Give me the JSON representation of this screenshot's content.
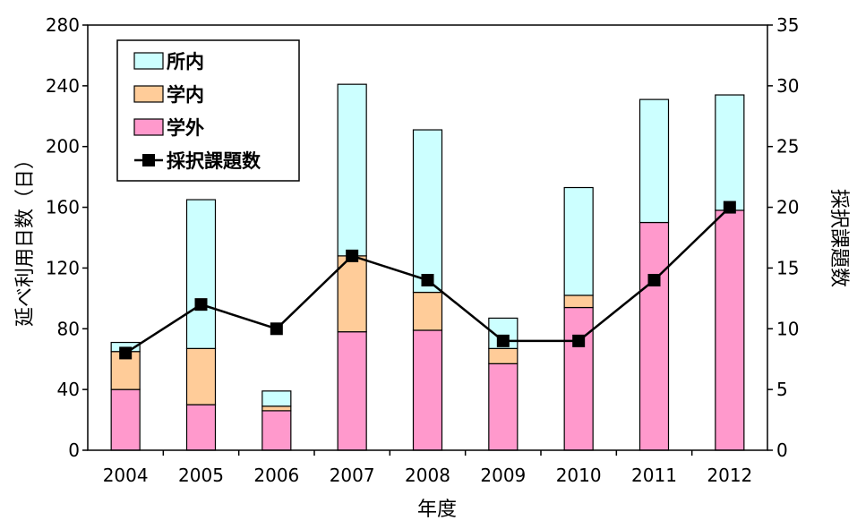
{
  "chart_data": {
    "type": "bar",
    "categories": [
      "2004",
      "2005",
      "2006",
      "2007",
      "2008",
      "2009",
      "2010",
      "2011",
      "2012"
    ],
    "series": [
      {
        "name": "学外",
        "kind": "stacked-bar",
        "axis": "left",
        "color": "#ff99cc",
        "values": [
          40,
          30,
          26,
          78,
          79,
          57,
          94,
          150,
          158
        ]
      },
      {
        "name": "学内",
        "kind": "stacked-bar",
        "axis": "left",
        "color": "#ffcc99",
        "values": [
          25,
          37,
          3,
          50,
          25,
          10,
          8,
          0,
          0
        ]
      },
      {
        "name": "所内",
        "kind": "stacked-bar",
        "axis": "left",
        "color": "#ccffff",
        "values": [
          6,
          98,
          10,
          113,
          107,
          20,
          71,
          81,
          76
        ]
      },
      {
        "name": "採択課題数",
        "kind": "line",
        "axis": "right",
        "color": "#000000",
        "values": [
          8,
          12,
          10,
          16,
          14,
          9,
          9,
          14,
          20
        ]
      }
    ],
    "xlabel": "年度",
    "ylabel": "延べ利用日数（日）",
    "y2label": "採択課題数",
    "ylim": [
      0,
      280
    ],
    "yticks": [
      "0",
      "40",
      "80",
      "120",
      "160",
      "200",
      "240",
      "280"
    ],
    "y2lim": [
      0,
      35
    ],
    "y2ticks": [
      "0",
      "5",
      "10",
      "15",
      "20",
      "25",
      "30",
      "35"
    ],
    "grid": false,
    "legend_position": "top-left",
    "legend_order": [
      "所内",
      "学内",
      "学外",
      "採択課題数"
    ]
  }
}
